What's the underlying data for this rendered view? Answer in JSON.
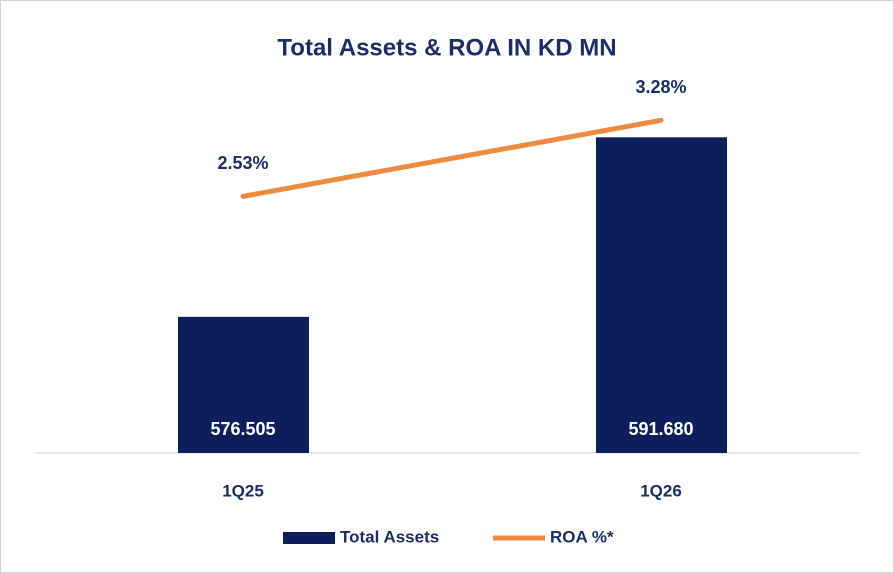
{
  "chart_data": {
    "type": "bar_line",
    "title": "Total Assets & ROA IN KD MN",
    "categories": [
      "1Q25",
      "1Q26"
    ],
    "series": [
      {
        "name": "Total Assets",
        "type": "bar",
        "color": "#0c1f5b",
        "values": [
          576.505,
          591.68
        ],
        "value_labels": [
          "576.505",
          "591.680"
        ]
      },
      {
        "name": "ROA %*",
        "type": "line",
        "axis": "y2",
        "color": "#ed8a3f",
        "values": [
          2.53,
          3.28
        ],
        "value_labels": [
          "2.53%",
          "3.28%"
        ]
      }
    ],
    "ylim": [
      565,
      595
    ],
    "y2lim": [
      0,
      3.5
    ],
    "legend": "bottom"
  }
}
